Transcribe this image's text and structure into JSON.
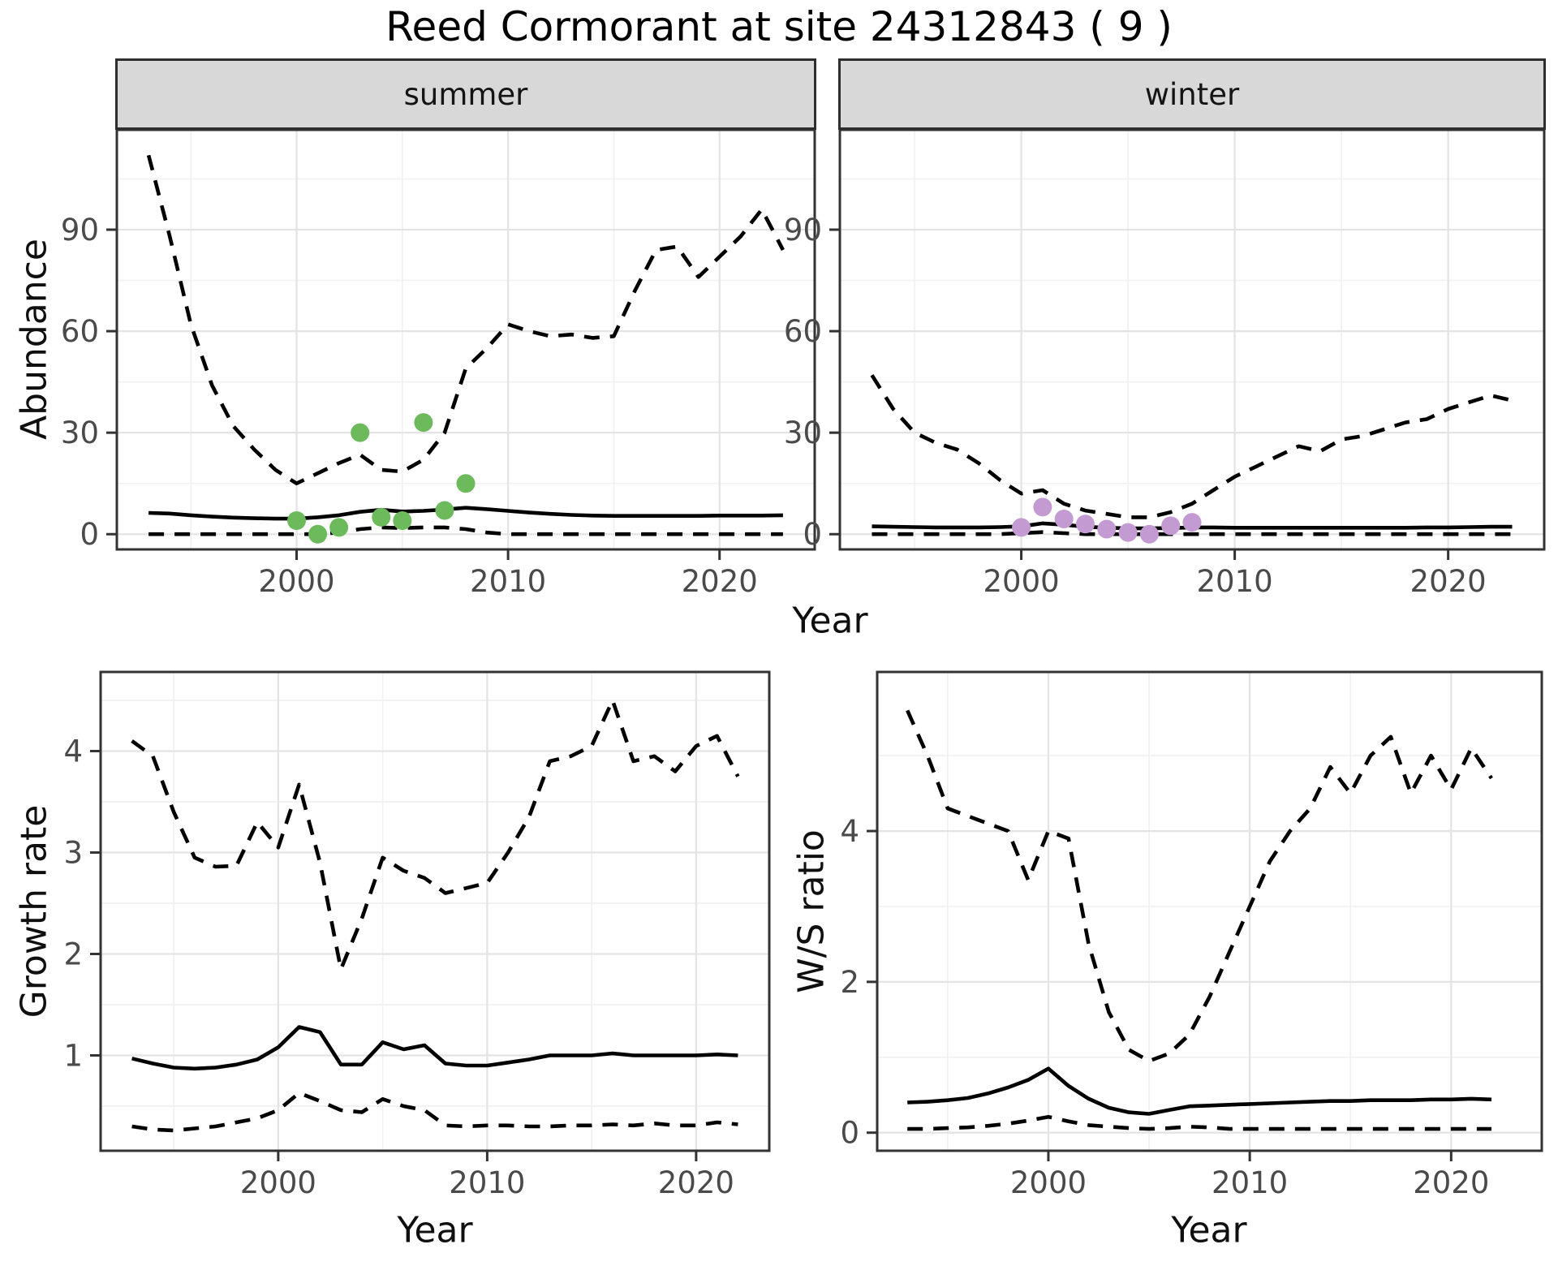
{
  "title": "Reed Cormorant at site 24312843 ( 9 )",
  "labels": {
    "year": "Year",
    "abundance": "Abundance",
    "growth_rate": "Growth rate",
    "ws_ratio": "W/S ratio",
    "facet_summer": "summer",
    "facet_winter": "winter"
  },
  "colors": {
    "summer_points": "#6CBA5C",
    "winter_points": "#C39BD2",
    "line": "#000000",
    "strip_bg": "#D8D8D8",
    "panel_border": "#333333",
    "grid_major": "#E4E4E4",
    "grid_minor": "#F1F1F1",
    "tick_text": "#4a4a4a"
  },
  "chart_data": [
    {
      "id": "abundance-summer",
      "type": "line",
      "facet": "summer",
      "xlabel": "Year",
      "ylabel": "Abundance",
      "xlim": [
        1991.5,
        2024.5
      ],
      "ylim": [
        -4.5,
        119.5
      ],
      "x_ticks": [
        2000,
        2010,
        2020
      ],
      "y_ticks": [
        0,
        30,
        60,
        90
      ],
      "x_minor": [
        1995,
        2005,
        2015
      ],
      "y_minor": [
        15,
        45,
        75,
        105
      ],
      "grid": true,
      "legend": "none",
      "x": [
        1993,
        1994,
        1995,
        1996,
        1997,
        1998,
        1999,
        2000,
        2001,
        2002,
        2003,
        2004,
        2005,
        2006,
        2007,
        2008,
        2009,
        2010,
        2011,
        2012,
        2013,
        2014,
        2015,
        2016,
        2017,
        2018,
        2019,
        2020,
        2021,
        2022,
        2023
      ],
      "series": [
        {
          "name": "upper-95ci",
          "style": "dashed",
          "values": [
            112,
            88,
            62,
            44,
            32,
            25,
            19,
            15,
            18,
            21,
            23.5,
            19,
            18.5,
            22,
            30,
            49,
            55,
            62,
            60,
            58.5,
            59,
            58,
            58.5,
            72,
            84,
            85,
            76,
            82,
            88,
            96,
            84
          ]
        },
        {
          "name": "median",
          "style": "solid",
          "values": [
            6.3,
            6.1,
            5.6,
            5.2,
            4.9,
            4.7,
            4.6,
            4.6,
            5.0,
            5.6,
            6.6,
            7.2,
            6.7,
            6.9,
            7.3,
            7.8,
            7.4,
            6.9,
            6.4,
            6.0,
            5.7,
            5.5,
            5.4,
            5.4,
            5.4,
            5.4,
            5.4,
            5.5,
            5.5,
            5.5,
            5.6
          ]
        },
        {
          "name": "lower-95ci",
          "style": "dashed",
          "values": [
            0,
            0,
            0,
            0,
            0,
            0,
            0,
            0,
            0,
            0.5,
            1.5,
            2,
            1.8,
            2,
            2,
            1.5,
            0.5,
            0,
            0,
            0,
            0,
            0,
            0,
            0,
            0,
            0,
            0,
            0,
            0,
            0,
            0
          ]
        }
      ],
      "points": {
        "name": "observed-counts",
        "color": "#6CBA5C",
        "x": [
          2000,
          2001,
          2002,
          2003,
          2004,
          2005,
          2006,
          2007,
          2008
        ],
        "y": [
          4,
          0,
          2,
          30,
          5,
          4,
          33,
          7,
          15
        ]
      }
    },
    {
      "id": "abundance-winter",
      "type": "line",
      "facet": "winter",
      "xlabel": "Year",
      "ylabel": "Abundance",
      "xlim": [
        1991.5,
        2024.5
      ],
      "ylim": [
        -4.5,
        119.5
      ],
      "x_ticks": [
        2000,
        2010,
        2020
      ],
      "y_ticks": [
        0,
        30,
        60,
        90
      ],
      "x_minor": [
        1995,
        2005,
        2015
      ],
      "y_minor": [
        15,
        45,
        75,
        105
      ],
      "grid": true,
      "legend": "none",
      "x": [
        1993,
        1994,
        1995,
        1996,
        1997,
        1998,
        1999,
        2000,
        2001,
        2002,
        2003,
        2004,
        2005,
        2006,
        2007,
        2008,
        2009,
        2010,
        2011,
        2012,
        2013,
        2014,
        2015,
        2016,
        2017,
        2018,
        2019,
        2020,
        2021,
        2022,
        2023
      ],
      "series": [
        {
          "name": "upper-95ci",
          "style": "dashed",
          "values": [
            47,
            37,
            30,
            27,
            25,
            21,
            16,
            12,
            13,
            9,
            7,
            6,
            5,
            5,
            6.5,
            9,
            13,
            17,
            20,
            23,
            26,
            24.5,
            28,
            29,
            31,
            33,
            34,
            37,
            39,
            41,
            39.5
          ]
        },
        {
          "name": "median",
          "style": "solid",
          "values": [
            2.3,
            2.2,
            2.1,
            2.0,
            2.0,
            2.0,
            2.1,
            2.3,
            3.2,
            2.8,
            2.2,
            1.9,
            1.7,
            1.7,
            1.8,
            2.0,
            2.0,
            1.9,
            1.9,
            1.9,
            1.9,
            1.9,
            1.9,
            1.9,
            1.9,
            1.9,
            2.0,
            2.0,
            2.1,
            2.2,
            2.2
          ]
        },
        {
          "name": "lower-95ci",
          "style": "dashed",
          "values": [
            0,
            0,
            0,
            0,
            0,
            0,
            0,
            0.3,
            0.6,
            0.3,
            0,
            0,
            0,
            0,
            0,
            0,
            0,
            0,
            0,
            0,
            0,
            0,
            0,
            0,
            0,
            0,
            0,
            0,
            0,
            0,
            0
          ]
        }
      ],
      "points": {
        "name": "observed-counts",
        "color": "#C39BD2",
        "x": [
          2000,
          2001,
          2002,
          2003,
          2004,
          2005,
          2006,
          2007,
          2008
        ],
        "y": [
          2,
          8,
          4.5,
          3,
          1.5,
          0.5,
          0,
          2.5,
          3.5
        ]
      }
    },
    {
      "id": "growth-rate",
      "type": "line",
      "facet": null,
      "xlabel": "Year",
      "ylabel": "Growth rate",
      "xlim": [
        1991.5,
        2023.5
      ],
      "ylim": [
        0.06,
        4.78
      ],
      "x_ticks": [
        2000,
        2010,
        2020
      ],
      "y_ticks": [
        1,
        2,
        3,
        4
      ],
      "x_minor": [
        1995,
        2005,
        2015
      ],
      "y_minor": [
        0.5,
        1.5,
        2.5,
        3.5,
        4.5
      ],
      "grid": true,
      "legend": "none",
      "x": [
        1993,
        1994,
        1995,
        1996,
        1997,
        1998,
        1999,
        2000,
        2001,
        2002,
        2003,
        2004,
        2005,
        2006,
        2007,
        2008,
        2009,
        2010,
        2011,
        2012,
        2013,
        2014,
        2015,
        2016,
        2017,
        2018,
        2019,
        2020,
        2021,
        2022
      ],
      "series": [
        {
          "name": "upper-95ci",
          "style": "dashed",
          "values": [
            4.1,
            3.95,
            3.4,
            2.95,
            2.86,
            2.87,
            3.3,
            3.05,
            3.67,
            2.9,
            1.85,
            2.35,
            2.95,
            2.82,
            2.75,
            2.6,
            2.65,
            2.7,
            3.0,
            3.35,
            3.9,
            3.95,
            4.05,
            4.5,
            3.9,
            3.95,
            3.8,
            4.05,
            4.15,
            3.75
          ]
        },
        {
          "name": "median",
          "style": "solid",
          "values": [
            0.97,
            0.92,
            0.88,
            0.87,
            0.88,
            0.91,
            0.96,
            1.08,
            1.28,
            1.23,
            0.91,
            0.91,
            1.13,
            1.06,
            1.1,
            0.92,
            0.9,
            0.9,
            0.93,
            0.96,
            1.0,
            1.0,
            1.0,
            1.02,
            1.0,
            1.0,
            1.0,
            1.0,
            1.01,
            1.0
          ]
        },
        {
          "name": "lower-95ci",
          "style": "dashed",
          "values": [
            0.3,
            0.27,
            0.26,
            0.28,
            0.3,
            0.34,
            0.38,
            0.46,
            0.63,
            0.55,
            0.46,
            0.44,
            0.57,
            0.5,
            0.46,
            0.31,
            0.3,
            0.31,
            0.31,
            0.3,
            0.3,
            0.31,
            0.31,
            0.32,
            0.31,
            0.33,
            0.31,
            0.31,
            0.34,
            0.32
          ]
        }
      ],
      "points": null
    },
    {
      "id": "ws-ratio",
      "type": "line",
      "facet": null,
      "xlabel": "Year",
      "ylabel": "W/S ratio",
      "xlim": [
        1991.5,
        2024.5
      ],
      "ylim": [
        -0.24,
        6.11
      ],
      "x_ticks": [
        2000,
        2010,
        2020
      ],
      "y_ticks": [
        0,
        2,
        4
      ],
      "x_minor": [
        1995,
        2005,
        2015
      ],
      "y_minor": [
        1,
        3,
        5
      ],
      "grid": true,
      "legend": "none",
      "x": [
        1993,
        1994,
        1995,
        1996,
        1997,
        1998,
        1999,
        2000,
        2001,
        2002,
        2003,
        2004,
        2005,
        2006,
        2007,
        2008,
        2009,
        2010,
        2011,
        2012,
        2013,
        2014,
        2015,
        2016,
        2017,
        2018,
        2019,
        2020,
        2021,
        2022
      ],
      "series": [
        {
          "name": "upper-95ci",
          "style": "dashed",
          "values": [
            5.6,
            5.0,
            4.3,
            4.2,
            4.1,
            4.0,
            3.35,
            4.0,
            3.9,
            2.5,
            1.6,
            1.1,
            0.95,
            1.05,
            1.3,
            1.8,
            2.4,
            3.0,
            3.6,
            4.0,
            4.3,
            4.85,
            4.5,
            5.0,
            5.25,
            4.5,
            5.0,
            4.55,
            5.1,
            4.7
          ]
        },
        {
          "name": "median",
          "style": "solid",
          "values": [
            0.4,
            0.41,
            0.43,
            0.46,
            0.52,
            0.6,
            0.7,
            0.85,
            0.62,
            0.45,
            0.33,
            0.27,
            0.25,
            0.3,
            0.35,
            0.36,
            0.37,
            0.38,
            0.39,
            0.4,
            0.41,
            0.42,
            0.42,
            0.43,
            0.43,
            0.43,
            0.44,
            0.44,
            0.45,
            0.44
          ]
        },
        {
          "name": "lower-95ci",
          "style": "dashed",
          "values": [
            0.05,
            0.05,
            0.06,
            0.07,
            0.09,
            0.12,
            0.16,
            0.21,
            0.15,
            0.1,
            0.08,
            0.06,
            0.05,
            0.06,
            0.08,
            0.07,
            0.05,
            0.05,
            0.05,
            0.05,
            0.05,
            0.05,
            0.05,
            0.05,
            0.05,
            0.05,
            0.05,
            0.05,
            0.05,
            0.05
          ]
        }
      ],
      "points": null
    }
  ]
}
